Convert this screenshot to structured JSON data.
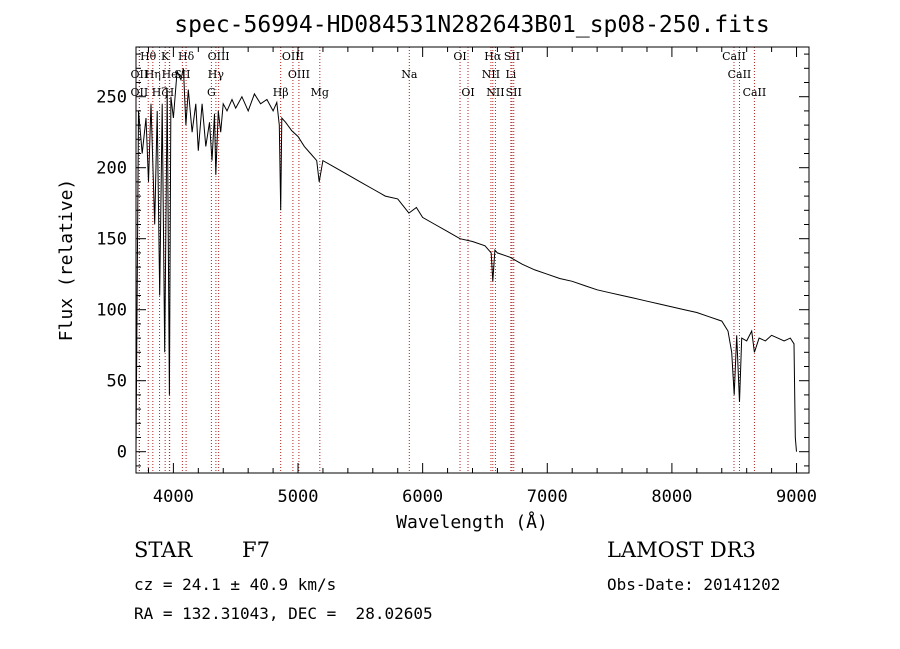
{
  "chart_data": {
    "type": "line",
    "title": "spec-56994-HD084531N282643B01_sp08-250.fits",
    "xlabel": "Wavelength (Å)",
    "ylabel": "Flux (relative)",
    "xlim": [
      3700,
      9100
    ],
    "ylim": [
      -15,
      285
    ],
    "xticks": [
      4000,
      5000,
      6000,
      7000,
      8000,
      9000
    ],
    "yticks": [
      0,
      50,
      100,
      150,
      200,
      250
    ],
    "grid": false,
    "line_color": "#000000",
    "marker_color": "#b22222",
    "series": [
      {
        "name": "spectrum",
        "x": [
          3700,
          3720,
          3750,
          3780,
          3800,
          3820,
          3850,
          3870,
          3890,
          3910,
          3930,
          3950,
          3968,
          3980,
          4000,
          4030,
          4060,
          4080,
          4100,
          4120,
          4150,
          4180,
          4200,
          4230,
          4260,
          4290,
          4310,
          4330,
          4340,
          4360,
          4380,
          4400,
          4430,
          4470,
          4500,
          4550,
          4600,
          4650,
          4700,
          4750,
          4800,
          4830,
          4850,
          4861,
          4870,
          4900,
          4950,
          5000,
          5050,
          5100,
          5150,
          5170,
          5200,
          5300,
          5400,
          5500,
          5600,
          5700,
          5800,
          5890,
          5950,
          6000,
          6100,
          6200,
          6300,
          6400,
          6500,
          6550,
          6563,
          6580,
          6600,
          6700,
          6800,
          6900,
          7000,
          7100,
          7200,
          7300,
          7400,
          7500,
          7600,
          7700,
          7800,
          7900,
          8000,
          8100,
          8200,
          8300,
          8400,
          8450,
          8480,
          8500,
          8520,
          8542,
          8560,
          8600,
          8640,
          8662,
          8700,
          8750,
          8800,
          8850,
          8900,
          8950,
          8980,
          8990,
          9000
        ],
        "y": [
          0,
          240,
          210,
          235,
          190,
          245,
          160,
          240,
          110,
          245,
          70,
          255,
          40,
          250,
          235,
          268,
          262,
          270,
          230,
          255,
          225,
          245,
          212,
          245,
          215,
          232,
          205,
          238,
          195,
          240,
          225,
          245,
          240,
          248,
          242,
          250,
          240,
          252,
          245,
          248,
          240,
          246,
          230,
          170,
          235,
          232,
          226,
          222,
          215,
          210,
          205,
          190,
          205,
          200,
          195,
          190,
          185,
          180,
          178,
          168,
          172,
          165,
          160,
          155,
          150,
          148,
          145,
          140,
          120,
          142,
          140,
          137,
          132,
          128,
          125,
          122,
          120,
          117,
          114,
          112,
          110,
          108,
          106,
          104,
          102,
          100,
          98,
          95,
          92,
          85,
          70,
          40,
          82,
          35,
          80,
          78,
          85,
          70,
          80,
          78,
          82,
          80,
          78,
          80,
          76,
          10,
          0
        ]
      }
    ],
    "lines": [
      {
        "name": "Hθ",
        "x": 3798,
        "row": 1
      },
      {
        "name": "OII",
        "x": 3727,
        "row": 2
      },
      {
        "name": "Hη",
        "x": 3835,
        "row": 2
      },
      {
        "name": "OII",
        "x": 3727,
        "row": 3
      },
      {
        "name": "Hζ",
        "x": 3889,
        "row": 3
      },
      {
        "name": "K",
        "x": 3934,
        "row": 1
      },
      {
        "name": "He",
        "x": 3970,
        "row": 2
      },
      {
        "name": "H",
        "x": 3968,
        "row": 3
      },
      {
        "name": "Hδ",
        "x": 4102,
        "row": 1
      },
      {
        "name": "SII",
        "x": 4072,
        "row": 2
      },
      {
        "name": "OIII",
        "x": 4363,
        "row": 1
      },
      {
        "name": "Hγ",
        "x": 4341,
        "row": 2
      },
      {
        "name": "G",
        "x": 4305,
        "row": 3
      },
      {
        "name": "Hβ",
        "x": 4861,
        "row": 4
      },
      {
        "name": "OIII",
        "x": 4959,
        "row": 1
      },
      {
        "name": "OIII",
        "x": 5007,
        "row": 2
      },
      {
        "name": "Mg",
        "x": 5175,
        "row": 4
      },
      {
        "name": "Na",
        "x": 5893,
        "row": 2
      },
      {
        "name": "OI",
        "x": 6300,
        "row": 1
      },
      {
        "name": "OI",
        "x": 6364,
        "row": 3
      },
      {
        "name": "Hα",
        "x": 6563,
        "row": 1
      },
      {
        "name": "NII",
        "x": 6548,
        "row": 2
      },
      {
        "name": "NII",
        "x": 6584,
        "row": 3
      },
      {
        "name": "SII",
        "x": 6717,
        "row": 1
      },
      {
        "name": "Li",
        "x": 6708,
        "row": 2
      },
      {
        "name": "SII",
        "x": 6731,
        "row": 3
      },
      {
        "name": "CaII",
        "x": 8498,
        "row": 1
      },
      {
        "name": "CaII",
        "x": 8542,
        "row": 2
      },
      {
        "name": "CaII",
        "x": 8662,
        "row": 3
      }
    ]
  },
  "info": {
    "class_label": "STAR",
    "subclass": "F7",
    "survey": "LAMOST DR3",
    "cz": "cz = 24.1 ± 40.9 km/s",
    "obs_date": "Obs-Date: 20141202",
    "coords": "RA = 132.31043, DEC =  28.02605"
  }
}
